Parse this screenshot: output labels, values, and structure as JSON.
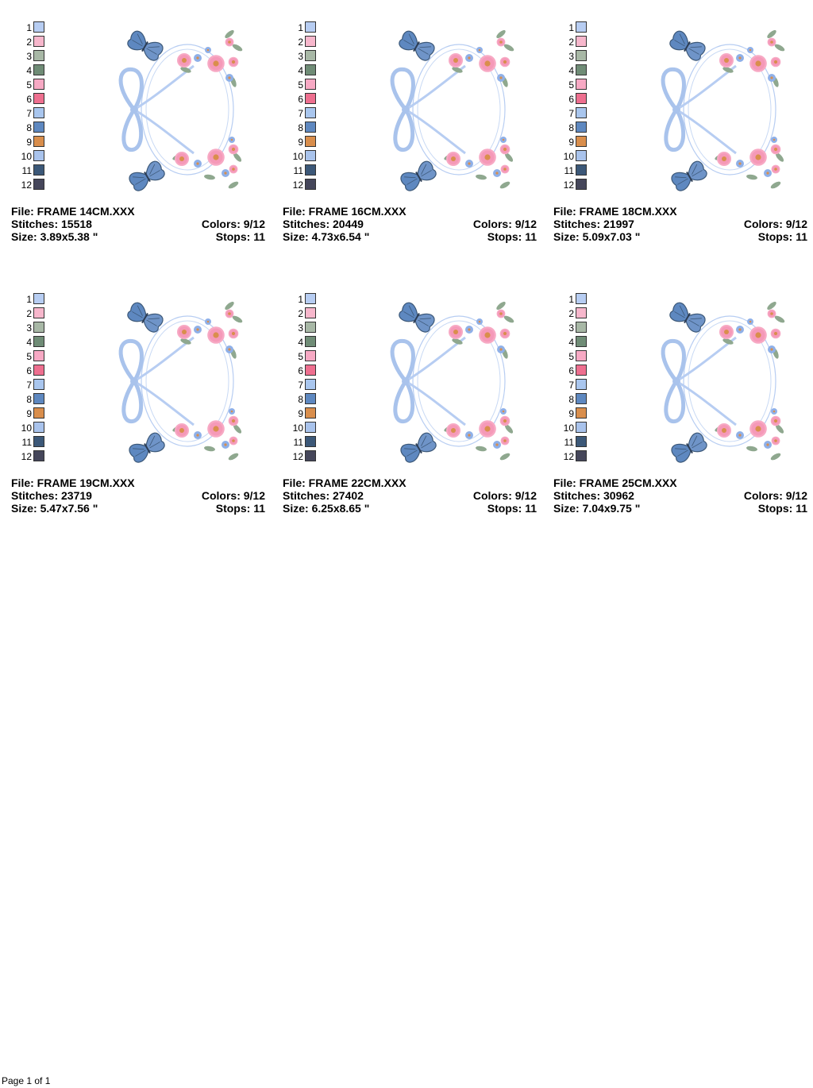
{
  "thread_colors": [
    {
      "num": "1",
      "hex": "#b7cdf2"
    },
    {
      "num": "2",
      "hex": "#f7b7cc"
    },
    {
      "num": "3",
      "hex": "#a8b8a6"
    },
    {
      "num": "4",
      "hex": "#6f8c76"
    },
    {
      "num": "5",
      "hex": "#f7a9c4"
    },
    {
      "num": "6",
      "hex": "#ee6f8f"
    },
    {
      "num": "7",
      "hex": "#a9c6ee"
    },
    {
      "num": "8",
      "hex": "#5e88c0"
    },
    {
      "num": "9",
      "hex": "#d98e4c"
    },
    {
      "num": "10",
      "hex": "#a9c3ec"
    },
    {
      "num": "11",
      "hex": "#3c5878"
    },
    {
      "num": "12",
      "hex": "#45465a"
    }
  ],
  "designs": [
    {
      "file": "File: FRAME 14CM.XXX",
      "stitches": "Stitches: 15518",
      "colors": "Colors: 9/12",
      "size": "Size: 3.89x5.38 \"",
      "stops": "Stops: 11"
    },
    {
      "file": "File: FRAME 16CM.XXX",
      "stitches": "Stitches: 20449",
      "colors": "Colors: 9/12",
      "size": "Size: 4.73x6.54 \"",
      "stops": "Stops: 11"
    },
    {
      "file": "File: FRAME 18CM.XXX",
      "stitches": "Stitches: 21997",
      "colors": "Colors: 9/12",
      "size": "Size: 5.09x7.03 \"",
      "stops": "Stops: 11"
    },
    {
      "file": "File: FRAME 19CM.XXX",
      "stitches": "Stitches: 23719",
      "colors": "Colors: 9/12",
      "size": "Size: 5.47x7.56 \"",
      "stops": "Stops: 11"
    },
    {
      "file": "File: FRAME 22CM.XXX",
      "stitches": "Stitches: 27402",
      "colors": "Colors: 9/12",
      "size": "Size: 6.25x8.65 \"",
      "stops": "Stops: 11"
    },
    {
      "file": "File: FRAME 25CM.XXX",
      "stitches": "Stitches: 30962",
      "colors": "Colors: 9/12",
      "size": "Size: 7.04x9.75 \"",
      "stops": "Stops: 11"
    }
  ],
  "footer": {
    "page": "Page 1 of 1"
  }
}
